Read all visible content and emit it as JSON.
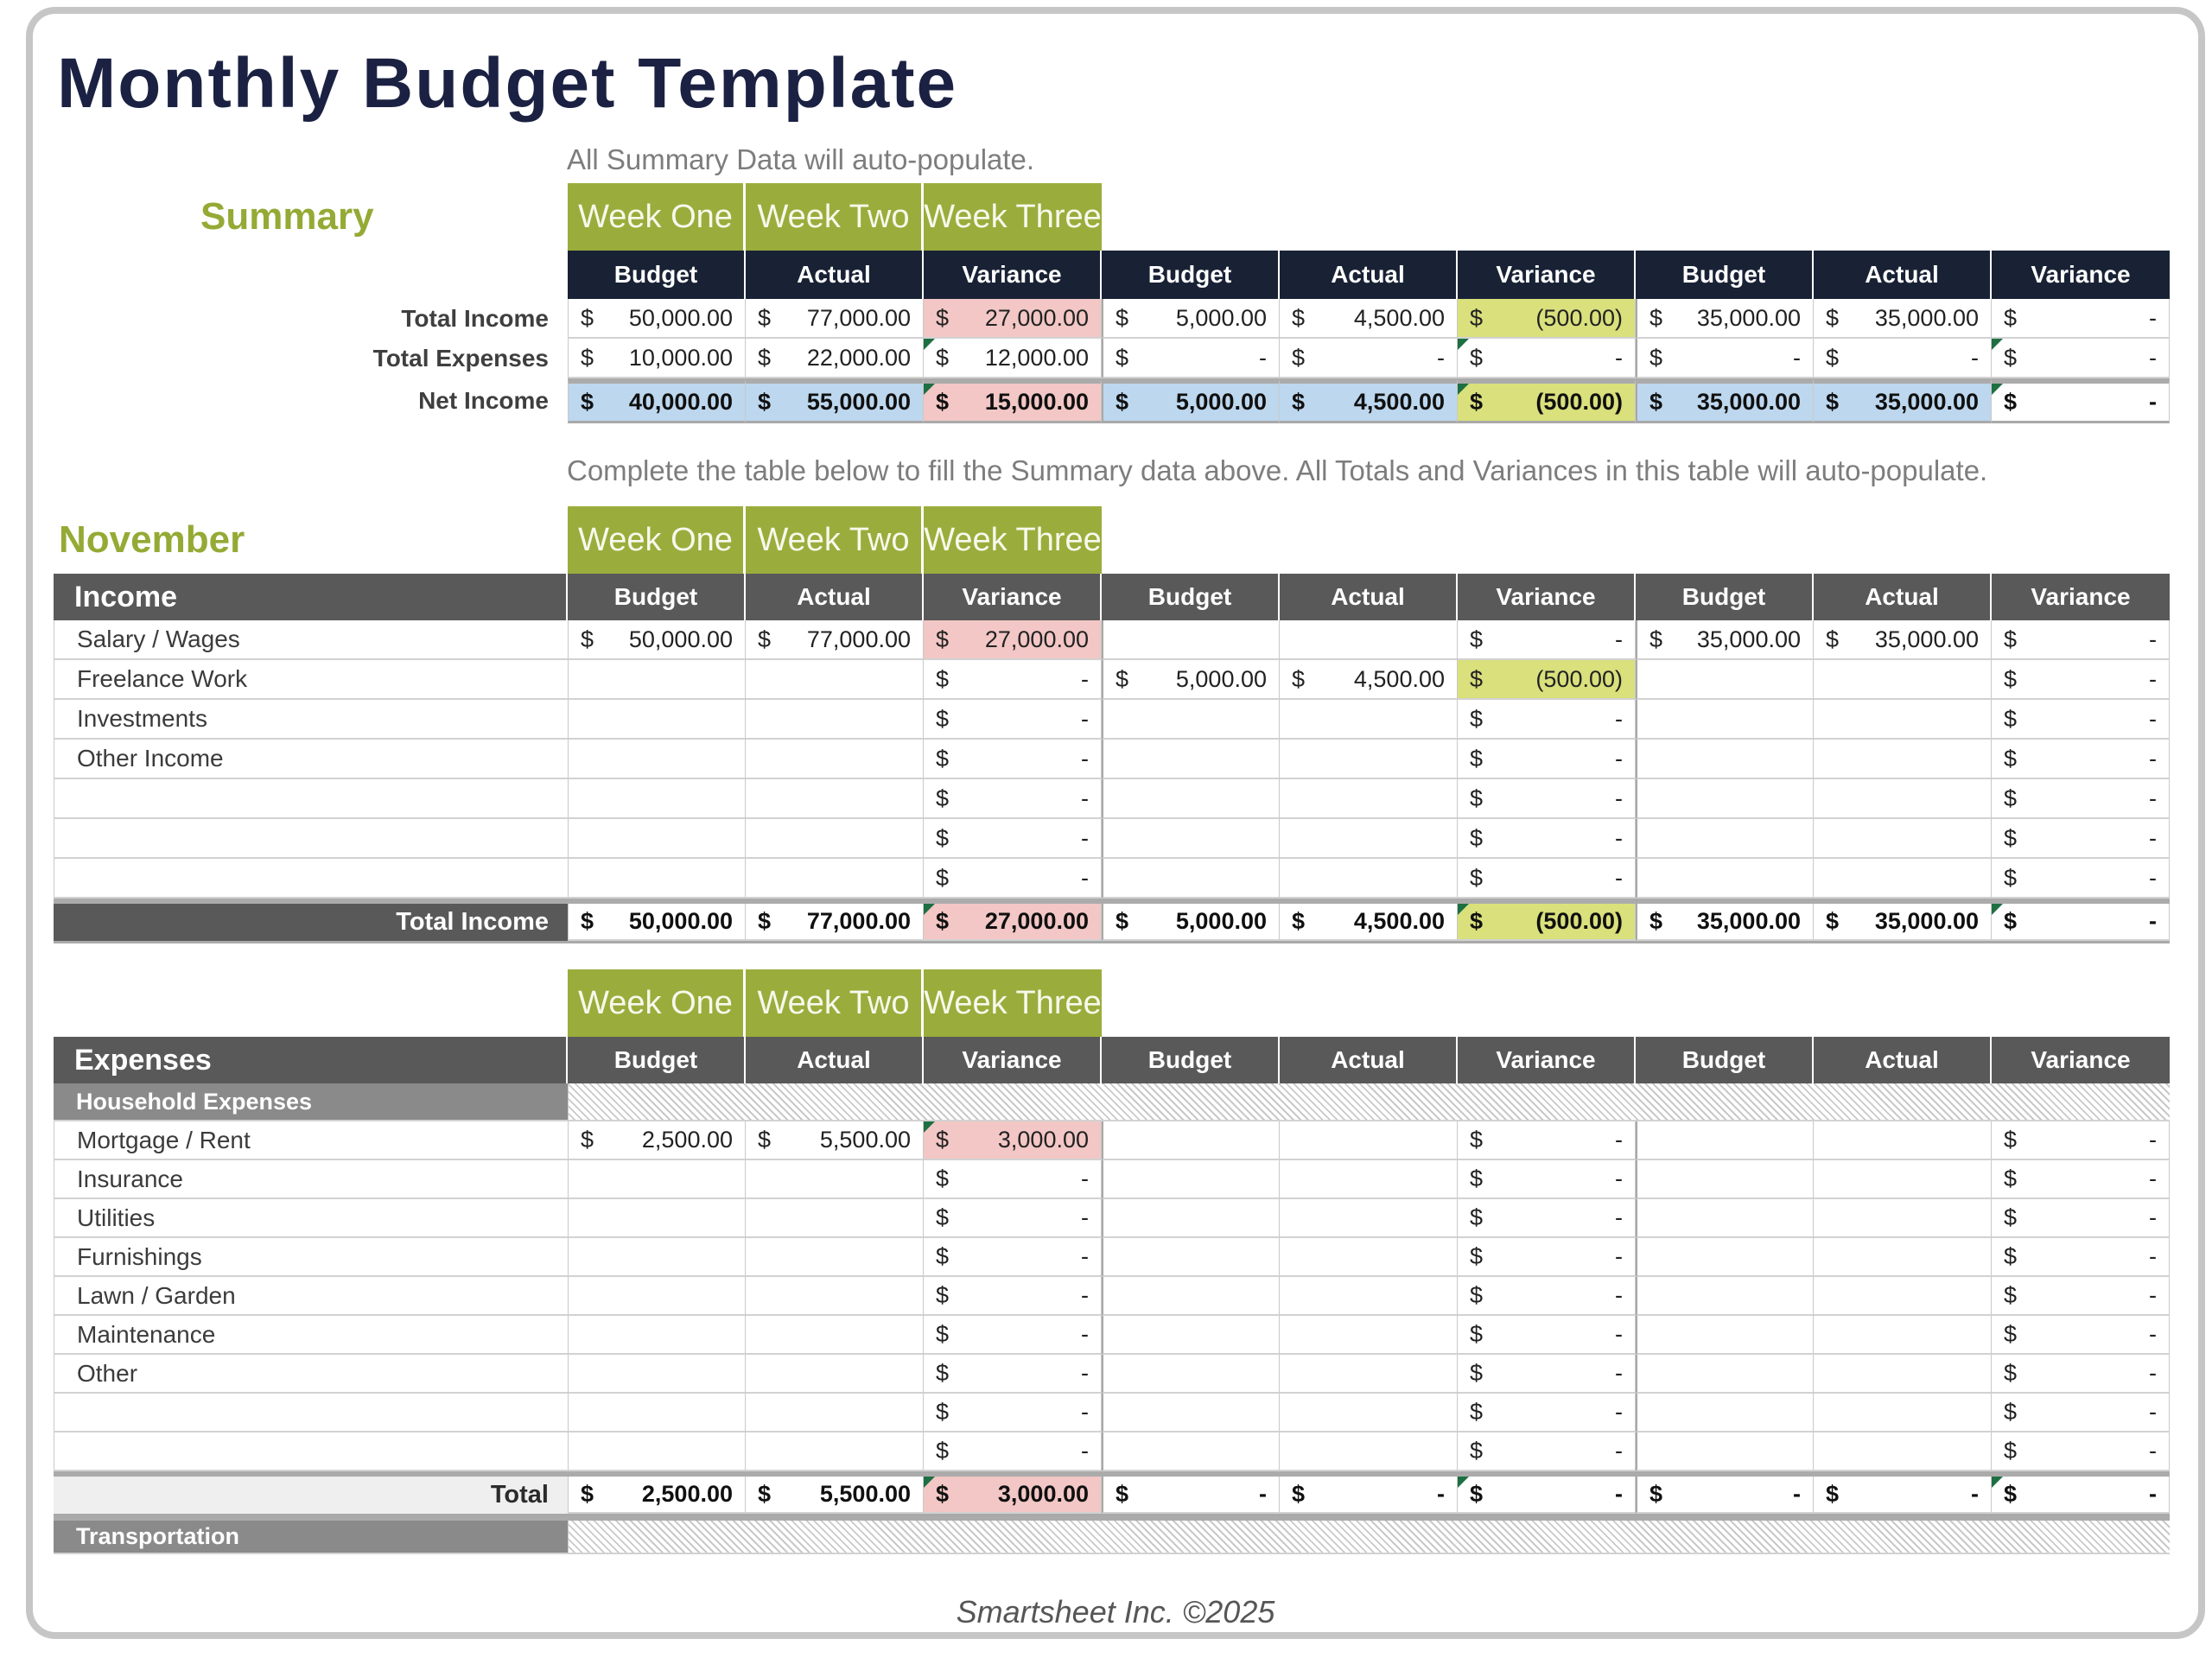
{
  "page": {
    "title": "Monthly Budget Template",
    "footer": "Smartsheet Inc. ©2025"
  },
  "colors": {
    "accent_green": "#9aad3c",
    "label_green": "#94aa35",
    "navy_header": "#192235",
    "dark_gray_header": "#595959",
    "section_gray": "#8a8a8a",
    "variance_over_pink": "#f2c7c5",
    "variance_under_yellow": "#d9e07c",
    "net_income_blue": "#bdd7ee",
    "title_navy": "#1b2142"
  },
  "weeks": [
    "Week One",
    "Week Two",
    "Week Three"
  ],
  "columns": [
    "Budget",
    "Actual",
    "Variance"
  ],
  "summary": {
    "label": "Summary",
    "note": "All Summary Data will auto-populate.",
    "rows": [
      {
        "type": "data",
        "label": "Total Income",
        "cells": [
          [
            "$",
            "50,000.00",
            ""
          ],
          [
            "$",
            "77,000.00",
            ""
          ],
          [
            "$",
            "27,000.00",
            "pink"
          ],
          [
            "$",
            "5,000.00",
            ""
          ],
          [
            "$",
            "4,500.00",
            ""
          ],
          [
            "$",
            "(500.00)",
            "yellow"
          ],
          [
            "$",
            "35,000.00",
            ""
          ],
          [
            "$",
            "35,000.00",
            ""
          ],
          [
            "$",
            "-",
            ""
          ]
        ]
      },
      {
        "type": "data",
        "label": "Total Expenses",
        "cells": [
          [
            "$",
            "10,000.00",
            ""
          ],
          [
            "$",
            "22,000.00",
            ""
          ],
          [
            "$",
            "12,000.00",
            "",
            1
          ],
          [
            "$",
            "-",
            ""
          ],
          [
            "$",
            "-",
            ""
          ],
          [
            "$",
            "-",
            "",
            1
          ],
          [
            "$",
            "-",
            ""
          ],
          [
            "$",
            "-",
            ""
          ],
          [
            "$",
            "-",
            "",
            1
          ]
        ]
      },
      {
        "type": "total",
        "label": "Net Income",
        "cells": [
          [
            "$",
            "40,000.00",
            "blue"
          ],
          [
            "$",
            "55,000.00",
            "blue"
          ],
          [
            "$",
            "15,000.00",
            "pink",
            1
          ],
          [
            "$",
            "5,000.00",
            "blue"
          ],
          [
            "$",
            "4,500.00",
            "blue"
          ],
          [
            "$",
            "(500.00)",
            "yellow",
            1
          ],
          [
            "$",
            "35,000.00",
            "blue"
          ],
          [
            "$",
            "35,000.00",
            "blue"
          ],
          [
            "$",
            "-",
            "",
            1
          ]
        ]
      }
    ]
  },
  "month": {
    "label": "November",
    "note": "Complete the table below to fill the Summary data above. All Totals and Variances in this table will auto-populate.",
    "income": {
      "header": "Income",
      "rows": [
        {
          "type": "data",
          "label": "Salary / Wages",
          "cells": [
            [
              "$",
              "50,000.00",
              ""
            ],
            [
              "$",
              "77,000.00",
              ""
            ],
            [
              "$",
              "27,000.00",
              "pink"
            ],
            null,
            null,
            [
              "$",
              "-",
              ""
            ],
            [
              "$",
              "35,000.00",
              ""
            ],
            [
              "$",
              "35,000.00",
              ""
            ],
            [
              "$",
              "-",
              ""
            ]
          ]
        },
        {
          "type": "data",
          "label": "Freelance Work",
          "cells": [
            null,
            null,
            [
              "$",
              "-",
              ""
            ],
            [
              "$",
              "5,000.00",
              ""
            ],
            [
              "$",
              "4,500.00",
              ""
            ],
            [
              "$",
              "(500.00)",
              "yellow"
            ],
            null,
            null,
            [
              "$",
              "-",
              ""
            ]
          ]
        },
        {
          "type": "data",
          "label": "Investments",
          "cells": [
            null,
            null,
            [
              "$",
              "-",
              ""
            ],
            null,
            null,
            [
              "$",
              "-",
              ""
            ],
            null,
            null,
            [
              "$",
              "-",
              ""
            ]
          ]
        },
        {
          "type": "data",
          "label": "Other Income",
          "cells": [
            null,
            null,
            [
              "$",
              "-",
              ""
            ],
            null,
            null,
            [
              "$",
              "-",
              ""
            ],
            null,
            null,
            [
              "$",
              "-",
              ""
            ]
          ]
        },
        {
          "type": "data",
          "label": "",
          "cells": [
            null,
            null,
            [
              "$",
              "-",
              ""
            ],
            null,
            null,
            [
              "$",
              "-",
              ""
            ],
            null,
            null,
            [
              "$",
              "-",
              ""
            ]
          ]
        },
        {
          "type": "data",
          "label": "",
          "cells": [
            null,
            null,
            [
              "$",
              "-",
              ""
            ],
            null,
            null,
            [
              "$",
              "-",
              ""
            ],
            null,
            null,
            [
              "$",
              "-",
              ""
            ]
          ]
        },
        {
          "type": "data",
          "label": "",
          "cells": [
            null,
            null,
            [
              "$",
              "-",
              ""
            ],
            null,
            null,
            [
              "$",
              "-",
              ""
            ],
            null,
            null,
            [
              "$",
              "-",
              ""
            ]
          ]
        },
        {
          "type": "total",
          "label": "Total Income",
          "cells": [
            [
              "$",
              "50,000.00",
              ""
            ],
            [
              "$",
              "77,000.00",
              ""
            ],
            [
              "$",
              "27,000.00",
              "pink",
              1
            ],
            [
              "$",
              "5,000.00",
              ""
            ],
            [
              "$",
              "4,500.00",
              ""
            ],
            [
              "$",
              "(500.00)",
              "yellow",
              1
            ],
            [
              "$",
              "35,000.00",
              ""
            ],
            [
              "$",
              "35,000.00",
              ""
            ],
            [
              "$",
              "-",
              "",
              1
            ]
          ]
        }
      ]
    },
    "expenses": {
      "header": "Expenses",
      "rows": [
        {
          "type": "section",
          "label": "Household Expenses"
        },
        {
          "type": "data",
          "label": "Mortgage / Rent",
          "cells": [
            [
              "$",
              "2,500.00",
              ""
            ],
            [
              "$",
              "5,500.00",
              ""
            ],
            [
              "$",
              "3,000.00",
              "pink",
              1
            ],
            null,
            null,
            [
              "$",
              "-",
              ""
            ],
            null,
            null,
            [
              "$",
              "-",
              ""
            ]
          ]
        },
        {
          "type": "data",
          "label": "Insurance",
          "cells": [
            null,
            null,
            [
              "$",
              "-",
              ""
            ],
            null,
            null,
            [
              "$",
              "-",
              ""
            ],
            null,
            null,
            [
              "$",
              "-",
              ""
            ]
          ]
        },
        {
          "type": "data",
          "label": "Utilities",
          "cells": [
            null,
            null,
            [
              "$",
              "-",
              ""
            ],
            null,
            null,
            [
              "$",
              "-",
              ""
            ],
            null,
            null,
            [
              "$",
              "-",
              ""
            ]
          ]
        },
        {
          "type": "data",
          "label": "Furnishings",
          "cells": [
            null,
            null,
            [
              "$",
              "-",
              ""
            ],
            null,
            null,
            [
              "$",
              "-",
              ""
            ],
            null,
            null,
            [
              "$",
              "-",
              ""
            ]
          ]
        },
        {
          "type": "data",
          "label": "Lawn / Garden",
          "cells": [
            null,
            null,
            [
              "$",
              "-",
              ""
            ],
            null,
            null,
            [
              "$",
              "-",
              ""
            ],
            null,
            null,
            [
              "$",
              "-",
              ""
            ]
          ]
        },
        {
          "type": "data",
          "label": "Maintenance",
          "cells": [
            null,
            null,
            [
              "$",
              "-",
              ""
            ],
            null,
            null,
            [
              "$",
              "-",
              ""
            ],
            null,
            null,
            [
              "$",
              "-",
              ""
            ]
          ]
        },
        {
          "type": "data",
          "label": "Other",
          "cells": [
            null,
            null,
            [
              "$",
              "-",
              ""
            ],
            null,
            null,
            [
              "$",
              "-",
              ""
            ],
            null,
            null,
            [
              "$",
              "-",
              ""
            ]
          ]
        },
        {
          "type": "data",
          "label": "",
          "cells": [
            null,
            null,
            [
              "$",
              "-",
              ""
            ],
            null,
            null,
            [
              "$",
              "-",
              ""
            ],
            null,
            null,
            [
              "$",
              "-",
              ""
            ]
          ]
        },
        {
          "type": "data",
          "label": "",
          "cells": [
            null,
            null,
            [
              "$",
              "-",
              ""
            ],
            null,
            null,
            [
              "$",
              "-",
              ""
            ],
            null,
            null,
            [
              "$",
              "-",
              ""
            ]
          ]
        },
        {
          "type": "total",
          "label": "Total",
          "cells": [
            [
              "$",
              "2,500.00",
              ""
            ],
            [
              "$",
              "5,500.00",
              ""
            ],
            [
              "$",
              "3,000.00",
              "pink",
              1
            ],
            [
              "$",
              "-",
              ""
            ],
            [
              "$",
              "-",
              ""
            ],
            [
              "$",
              "-",
              "",
              1
            ],
            [
              "$",
              "-",
              ""
            ],
            [
              "$",
              "-",
              ""
            ],
            [
              "$",
              "-",
              "",
              1
            ]
          ]
        },
        {
          "type": "section",
          "label": "Transportation",
          "sep": 1
        }
      ]
    }
  }
}
